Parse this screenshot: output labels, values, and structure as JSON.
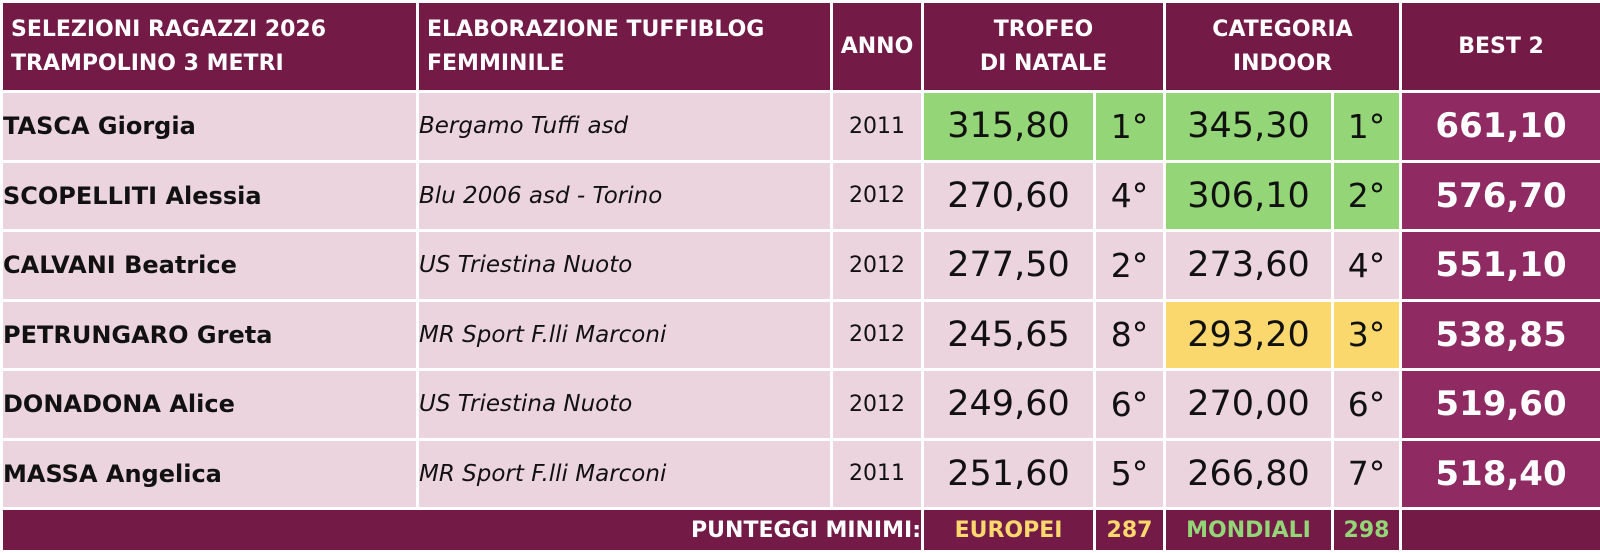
{
  "header": {
    "title_line1": "SELEZIONI RAGAZZI 2026",
    "title_line2": "TRAMPOLINO 3 METRI",
    "source_line1": "ELABORAZIONE TUFFIBLOG",
    "source_line2": "FEMMINILE",
    "year": "ANNO",
    "event1_line1": "TROFEO",
    "event1_line2": "DI NATALE",
    "event2_line1": "CATEGORIA",
    "event2_line2": "INDOOR",
    "best": "BEST 2"
  },
  "rows": [
    {
      "name": "TASCA Giorgia",
      "club": "Bergamo Tuffi asd",
      "year": "2011",
      "score1": "315,80",
      "place1": "1°",
      "score2": "345,30",
      "place2": "1°",
      "best": "661,10"
    },
    {
      "name": "SCOPELLITI Alessia",
      "club": "Blu 2006 asd - Torino",
      "year": "2012",
      "score1": "270,60",
      "place1": "4°",
      "score2": "306,10",
      "place2": "2°",
      "best": "576,70"
    },
    {
      "name": "CALVANI Beatrice",
      "club": "US Triestina Nuoto",
      "year": "2012",
      "score1": "277,50",
      "place1": "2°",
      "score2": "273,60",
      "place2": "4°",
      "best": "551,10"
    },
    {
      "name": "PETRUNGARO Greta",
      "club": "MR Sport F.lli Marconi",
      "year": "2012",
      "score1": "245,65",
      "place1": "8°",
      "score2": "293,20",
      "place2": "3°",
      "best": "538,85"
    },
    {
      "name": "DONADONA Alice",
      "club": "US Triestina Nuoto",
      "year": "2012",
      "score1": "249,60",
      "place1": "6°",
      "score2": "270,00",
      "place2": "6°",
      "best": "519,60"
    },
    {
      "name": "MASSA Angelica",
      "club": "MR Sport F.lli Marconi",
      "year": "2011",
      "score1": "251,60",
      "place1": "5°",
      "score2": "266,80",
      "place2": "7°",
      "best": "518,40"
    }
  ],
  "footer": {
    "label": "PUNTEGGI MINIMI:",
    "europei_label": "EUROPEI",
    "europei_value": "287",
    "mondiali_label": "MONDIALI",
    "mondiali_value": "298"
  },
  "colors": {
    "header_bg": "#731a47",
    "row_bg": "#ebd4de",
    "best_bg": "#8f2b62",
    "green": "#94d577",
    "yellow": "#fbd86e"
  }
}
